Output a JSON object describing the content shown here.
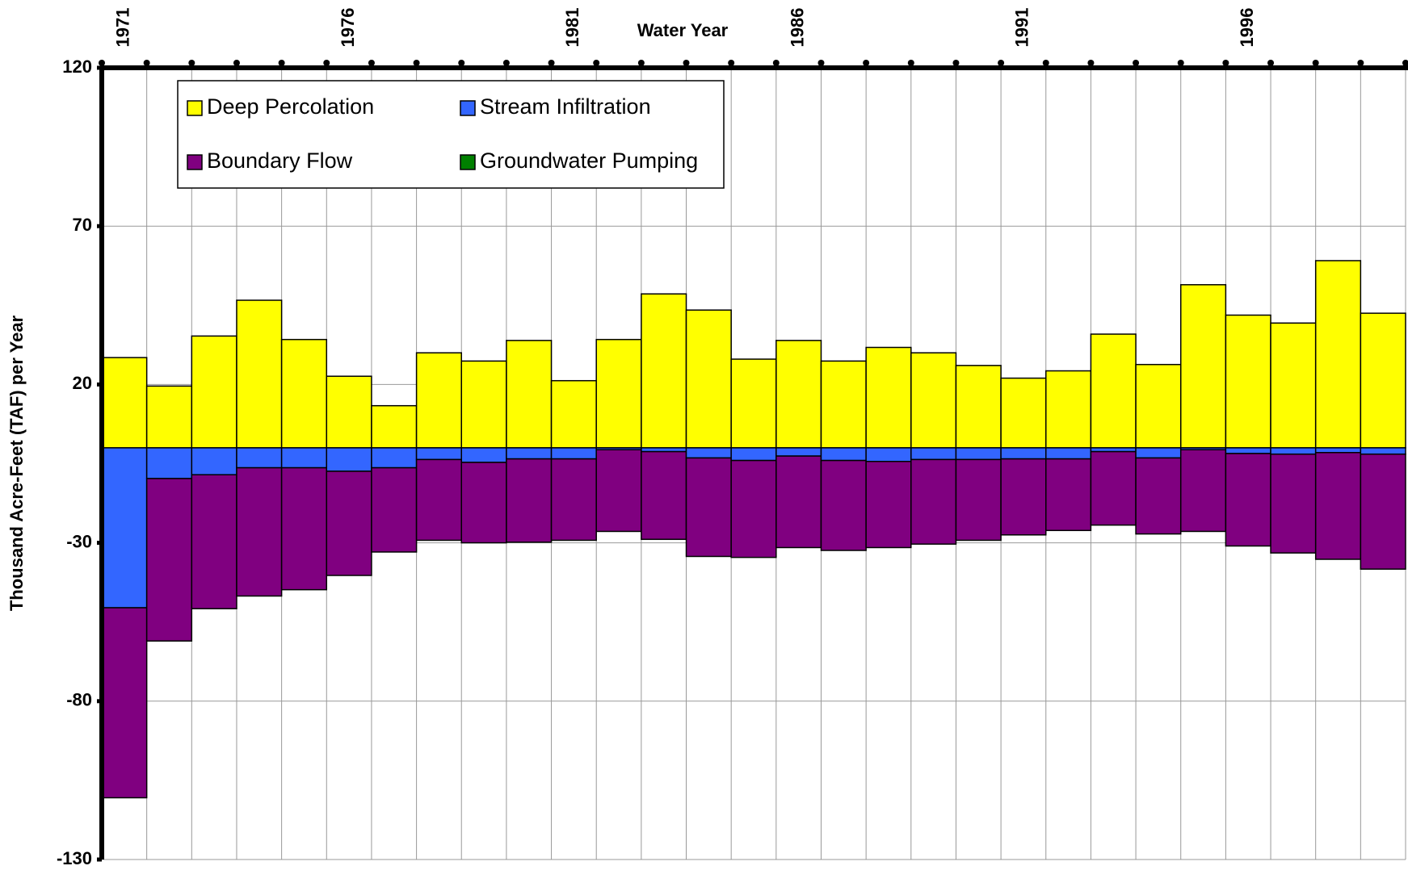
{
  "chart_data": {
    "type": "bar",
    "title": "Water Year",
    "y_label": "Thousand Acre-Feet (TAF) per Year",
    "categories": [
      "1971",
      null,
      null,
      null,
      null,
      "1976",
      null,
      null,
      null,
      null,
      "1981",
      null,
      null,
      null,
      null,
      "1986",
      null,
      null,
      null,
      null,
      "1991",
      null,
      null,
      null,
      null,
      "1996",
      null,
      null,
      null
    ],
    "series": [
      {
        "name": "Deep Percolation",
        "color": "#ffff00",
        "values": [
          28.5,
          19.5,
          35.3,
          46.6,
          34.2,
          22.6,
          13.3,
          30.0,
          27.4,
          33.9,
          21.2,
          34.2,
          48.6,
          43.5,
          28.0,
          33.9,
          27.4,
          31.7,
          30.0,
          26.0,
          22.0,
          24.3,
          35.9,
          26.3,
          51.5,
          41.9,
          39.4,
          59.1,
          42.5
        ]
      },
      {
        "name": "Stream Infiltration",
        "color": "#3366ff",
        "values": [
          -50.5,
          -9.7,
          -8.5,
          -6.3,
          -6.3,
          -7.4,
          -6.3,
          -3.7,
          -4.6,
          -3.5,
          -3.5,
          -0.6,
          -1.2,
          -3.2,
          -4.0,
          -2.6,
          -4.0,
          -4.3,
          -3.7,
          -3.7,
          -3.5,
          -3.5,
          -1.2,
          -3.2,
          -0.6,
          -1.8,
          -2.0,
          -1.5,
          -2.0
        ]
      },
      {
        "name": "Boundary Flow",
        "color": "#800080",
        "values": [
          -60.0,
          -51.3,
          -42.3,
          -40.5,
          -38.5,
          -32.9,
          -26.6,
          -25.5,
          -25.4,
          -26.3,
          -25.7,
          -25.8,
          -27.7,
          -31.1,
          -30.6,
          -28.9,
          -28.4,
          -27.2,
          -26.7,
          -25.5,
          -24.0,
          -22.6,
          -23.2,
          -24.0,
          -25.8,
          -29.2,
          -31.2,
          -33.7,
          -36.3
        ]
      },
      {
        "name": "Groundwater Pumping",
        "color": "#008000",
        "values": [
          0,
          0,
          0,
          0,
          0,
          0,
          0,
          0,
          0,
          0,
          0,
          0,
          0,
          0,
          0,
          0,
          0,
          0,
          0,
          0,
          0,
          0,
          0,
          0,
          0,
          0,
          0,
          0,
          0
        ]
      }
    ],
    "ylim": [
      -130,
      120
    ],
    "yticks": [
      120,
      70,
      20,
      -30,
      -80,
      -130
    ],
    "grid": true,
    "legend": "top-left",
    "stacked": true
  }
}
